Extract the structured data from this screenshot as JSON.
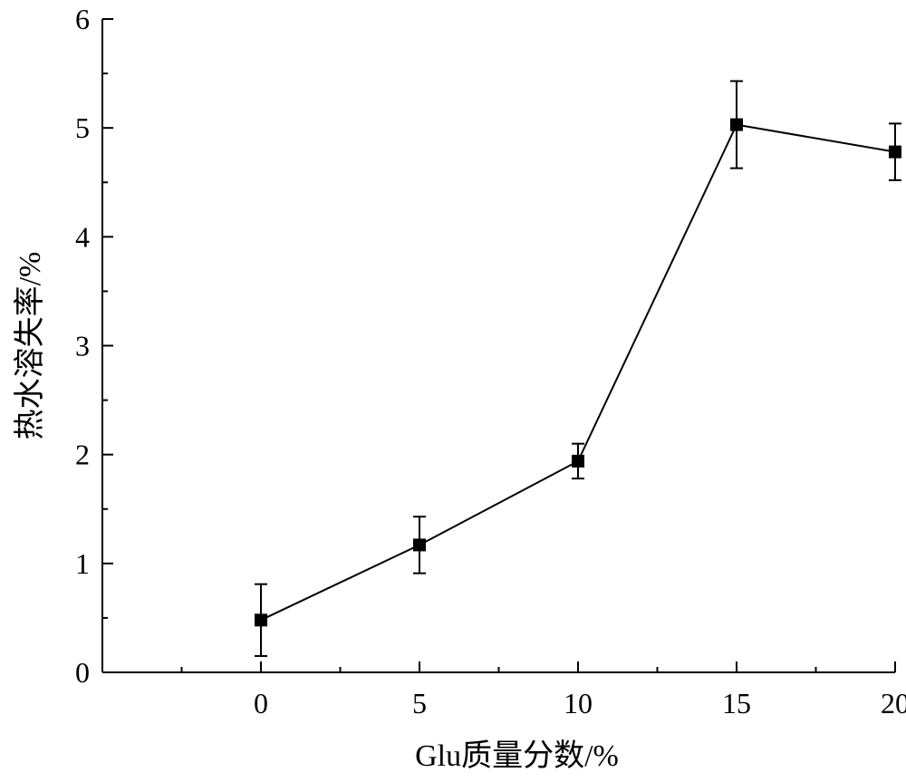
{
  "chart_data": {
    "type": "line",
    "title": "",
    "xlabel": "Glu质量分数/%",
    "ylabel": "热水溶失率/%",
    "xlim": [
      -5,
      20
    ],
    "ylim": [
      0,
      6
    ],
    "x_ticks": [
      0,
      5,
      10,
      15,
      20
    ],
    "x_minor_ticks": [
      -2.5,
      2.5,
      7.5,
      12.5,
      17.5
    ],
    "y_ticks": [
      0,
      1,
      2,
      3,
      4,
      5,
      6
    ],
    "y_minor_ticks": [
      0.5,
      1.5,
      2.5,
      3.5,
      4.5,
      5.5
    ],
    "grid": false,
    "marker": "square",
    "color": "#000000",
    "series": [
      {
        "x": [
          0,
          5,
          10,
          15,
          20
        ],
        "y": [
          0.48,
          1.17,
          1.94,
          5.03,
          4.78
        ],
        "error": [
          0.33,
          0.26,
          0.16,
          0.4,
          0.26
        ]
      }
    ]
  }
}
